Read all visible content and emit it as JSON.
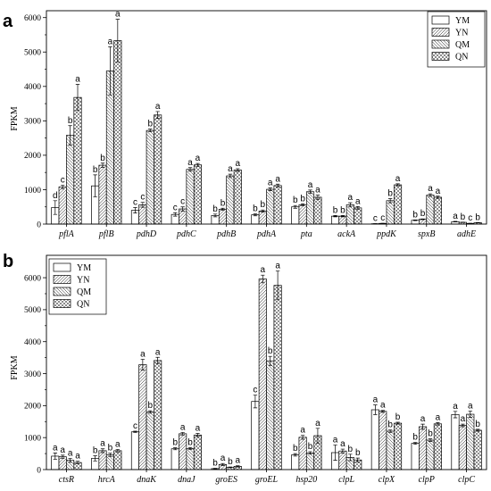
{
  "chart_data": [
    {
      "panel_label": "a",
      "type": "bar",
      "ylabel": "FPKM",
      "ylim": [
        0,
        6200
      ],
      "yticks": [
        0,
        1000,
        2000,
        3000,
        4000,
        5000,
        6000
      ],
      "legend": "top-right",
      "grid": false,
      "categories": [
        "pflA",
        "pflB",
        "pdhD",
        "pdhC",
        "pdhB",
        "pdhA",
        "pta",
        "ackA",
        "ppdK",
        "spxB",
        "adhE"
      ],
      "series": [
        {
          "name": "YM",
          "values": [
            480,
            1110,
            400,
            280,
            250,
            270,
            500,
            230,
            10,
            110,
            70
          ],
          "errors": [
            200,
            320,
            80,
            50,
            40,
            30,
            40,
            20,
            5,
            10,
            10
          ],
          "letters": [
            "d",
            "b",
            "c",
            "c",
            "b",
            "b",
            "b",
            "b",
            "c",
            "b",
            "a"
          ]
        },
        {
          "name": "YN",
          "values": [
            1080,
            1710,
            560,
            440,
            430,
            380,
            560,
            230,
            20,
            140,
            50
          ],
          "errors": [
            50,
            60,
            70,
            60,
            30,
            30,
            30,
            20,
            5,
            10,
            5
          ],
          "letters": [
            "c",
            "b",
            "c",
            "c",
            "b",
            "b",
            "b",
            "b",
            "c",
            "b",
            "b"
          ]
        },
        {
          "name": "QM",
          "values": [
            2580,
            4450,
            2720,
            1590,
            1400,
            1010,
            940,
            560,
            680,
            840,
            20
          ],
          "errors": [
            280,
            700,
            40,
            50,
            50,
            40,
            50,
            60,
            60,
            40,
            5
          ],
          "letters": [
            "b",
            "a",
            "b",
            "a",
            "a",
            "a",
            "a",
            "a",
            "b",
            "a",
            "c"
          ]
        },
        {
          "name": "QN",
          "values": [
            3680,
            5330,
            3170,
            1720,
            1570,
            1120,
            780,
            470,
            1140,
            780,
            40
          ],
          "errors": [
            380,
            620,
            100,
            40,
            40,
            40,
            60,
            40,
            30,
            30,
            5
          ],
          "letters": [
            "a",
            "a",
            "a",
            "a",
            "a",
            "a",
            "a",
            "a",
            "a",
            "a",
            "b"
          ]
        }
      ]
    },
    {
      "panel_label": "b",
      "type": "bar",
      "ylabel": "FPKM",
      "ylim": [
        0,
        6700
      ],
      "yticks": [
        0,
        1000,
        2000,
        3000,
        4000,
        5000,
        6000
      ],
      "legend": "top-left",
      "grid": false,
      "categories": [
        "ctsR",
        "hrcA",
        "dnaK",
        "dnaJ",
        "groES",
        "groEL",
        "hsp20",
        "clpL",
        "clpX",
        "clpP",
        "clpC"
      ],
      "series": [
        {
          "name": "YM",
          "values": [
            420,
            350,
            1180,
            650,
            30,
            2130,
            460,
            530,
            1870,
            820,
            1720
          ],
          "errors": [
            100,
            80,
            20,
            30,
            10,
            200,
            40,
            240,
            150,
            30,
            100
          ],
          "letters": [
            "a",
            "b",
            "c",
            "b",
            "b",
            "c",
            "b",
            "a",
            "a",
            "b",
            "a"
          ]
        },
        {
          "name": "YN",
          "values": [
            400,
            590,
            3280,
            1120,
            160,
            5960,
            1010,
            580,
            1820,
            1340,
            1380
          ],
          "errors": [
            50,
            60,
            170,
            40,
            30,
            120,
            60,
            60,
            30,
            80,
            40
          ],
          "letters": [
            "a",
            "a",
            "a",
            "a",
            "a",
            "a",
            "a",
            "a",
            "a",
            "a",
            "a"
          ]
        },
        {
          "name": "QM",
          "values": [
            290,
            460,
            1800,
            660,
            70,
            3400,
            520,
            380,
            1200,
            920,
            1730
          ],
          "errors": [
            60,
            50,
            40,
            30,
            10,
            140,
            40,
            100,
            40,
            40,
            100
          ],
          "letters": [
            "a",
            "b",
            "b",
            "b",
            "b",
            "b",
            "b",
            "b",
            "b",
            "b",
            "a"
          ]
        },
        {
          "name": "QN",
          "values": [
            220,
            590,
            3410,
            1080,
            100,
            5760,
            1060,
            300,
            1450,
            1430,
            1230
          ],
          "errors": [
            40,
            40,
            100,
            50,
            20,
            450,
            230,
            60,
            30,
            40,
            30
          ],
          "letters": [
            "a",
            "a",
            "a",
            "a",
            "a",
            "a",
            "a",
            "b",
            "b",
            "a",
            "b"
          ]
        }
      ]
    }
  ]
}
